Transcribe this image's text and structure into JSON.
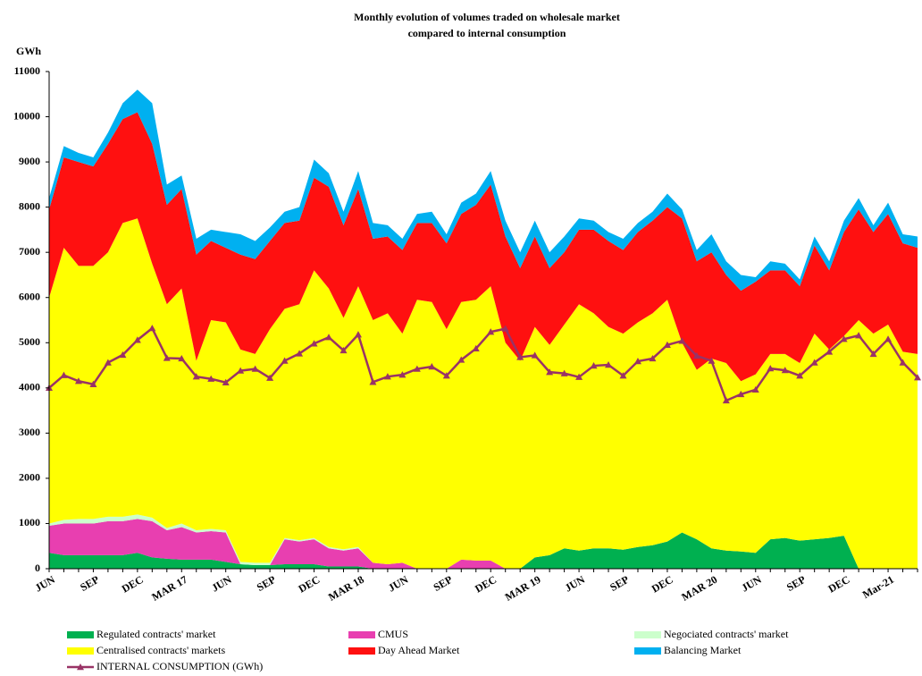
{
  "chart_data": {
    "type": "area",
    "stacked": true,
    "title": [
      "Monthly  evolution  of  volumes  traded  on  wholesale  market",
      "compared  to  internal  consumption"
    ],
    "y_label": "GWh",
    "categories": [
      "JUN",
      null,
      null,
      "SEP",
      null,
      null,
      "DEC",
      null,
      null,
      "MAR 17",
      null,
      null,
      "JUN",
      null,
      null,
      "SEP",
      null,
      null,
      "DEC",
      null,
      null,
      "MAR 18",
      null,
      null,
      "JUN",
      null,
      null,
      "SEP",
      null,
      null,
      "DEC",
      null,
      null,
      "MAR 19",
      null,
      null,
      "JUN",
      null,
      null,
      "SEP",
      null,
      null,
      "DEC",
      null,
      null,
      "MAR 20",
      null,
      null,
      "JUN",
      null,
      null,
      "SEP",
      null,
      null,
      "DEC",
      null,
      null,
      "Mar-21",
      null,
      null
    ],
    "ylim": [
      0,
      11000
    ],
    "yticks": [
      0,
      1000,
      2000,
      3000,
      4000,
      5000,
      6000,
      7000,
      8000,
      9000,
      10000,
      11000
    ],
    "series": [
      {
        "name": "Regulated contracts' market",
        "color": "#00b050",
        "values": [
          350,
          300,
          300,
          300,
          300,
          300,
          350,
          250,
          220,
          200,
          200,
          200,
          150,
          100,
          80,
          80,
          100,
          100,
          100,
          50,
          50,
          50,
          0,
          0,
          0,
          0,
          0,
          0,
          0,
          0,
          0,
          0,
          0,
          250,
          300,
          450,
          400,
          450,
          450,
          420,
          480,
          520,
          600,
          800,
          650,
          450,
          400,
          380,
          350,
          650,
          680,
          620,
          650,
          680,
          730,
          0,
          0,
          0,
          0,
          0
        ]
      },
      {
        "name": "CMUS",
        "color": "#e83fb0",
        "values": [
          600,
          700,
          700,
          700,
          750,
          750,
          750,
          800,
          630,
          720,
          600,
          630,
          650,
          0,
          0,
          0,
          550,
          500,
          550,
          400,
          350,
          400,
          130,
          100,
          130,
          0,
          0,
          0,
          200,
          180,
          180,
          0,
          0,
          0,
          0,
          0,
          0,
          0,
          0,
          0,
          0,
          0,
          0,
          0,
          0,
          0,
          0,
          0,
          0,
          0,
          0,
          0,
          0,
          0,
          0,
          0,
          0,
          0,
          0,
          0
        ]
      },
      {
        "name": "Negociated contracts' market",
        "color": "#ccffcc",
        "values": [
          50,
          80,
          100,
          100,
          100,
          100,
          100,
          80,
          50,
          80,
          50,
          50,
          50,
          50,
          50,
          50,
          30,
          30,
          30,
          30,
          30,
          30,
          0,
          0,
          0,
          0,
          0,
          0,
          0,
          0,
          0,
          0,
          0,
          0,
          0,
          0,
          0,
          0,
          0,
          0,
          0,
          0,
          0,
          0,
          0,
          0,
          0,
          0,
          0,
          0,
          0,
          0,
          0,
          0,
          0,
          0,
          0,
          0,
          0,
          0
        ]
      },
      {
        "name": "Centralised contracts' markets",
        "color": "#ffff00",
        "values": [
          5000,
          6020,
          5600,
          5600,
          5850,
          6500,
          6550,
          5620,
          4950,
          5200,
          3750,
          4620,
          4600,
          4700,
          4620,
          5170,
          5070,
          5220,
          5920,
          5720,
          5120,
          5770,
          5370,
          5550,
          5070,
          5950,
          5900,
          5300,
          5700,
          5770,
          6070,
          5000,
          4600,
          5100,
          4650,
          4950,
          5450,
          5200,
          4900,
          4780,
          4970,
          5130,
          5350,
          4200,
          3750,
          4200,
          4150,
          3770,
          3950,
          4100,
          4070,
          3930,
          4550,
          4170,
          4420,
          5500,
          5200,
          5400,
          4800,
          4750
        ]
      },
      {
        "name": "Day Ahead Market",
        "color": "#ff1010",
        "values": [
          1950,
          2000,
          2300,
          2200,
          2400,
          2300,
          2350,
          2650,
          2200,
          2200,
          2350,
          1750,
          1650,
          2100,
          2100,
          1950,
          1900,
          1850,
          2050,
          2250,
          2050,
          2150,
          1800,
          1700,
          1850,
          1700,
          1750,
          1900,
          1950,
          2100,
          2250,
          2350,
          2050,
          2000,
          1700,
          1600,
          1650,
          1850,
          1900,
          1850,
          2000,
          2050,
          2050,
          2750,
          2400,
          2350,
          1950,
          2000,
          2050,
          1850,
          1850,
          1700,
          1950,
          1750,
          2300,
          2450,
          2250,
          2450,
          2400,
          2350
        ]
      },
      {
        "name": "Balancing Market",
        "color": "#00b0f0",
        "values": [
          250,
          250,
          200,
          200,
          250,
          350,
          500,
          900,
          450,
          300,
          350,
          250,
          350,
          450,
          400,
          300,
          250,
          300,
          400,
          300,
          300,
          400,
          350,
          250,
          250,
          200,
          250,
          200,
          250,
          250,
          300,
          350,
          350,
          350,
          350,
          350,
          250,
          200,
          200,
          250,
          200,
          200,
          300,
          200,
          250,
          400,
          300,
          350,
          100,
          200,
          150,
          150,
          200,
          200,
          250,
          250,
          150,
          250,
          200,
          250
        ]
      },
      {
        "name": "INTERNAL CONSUMPTION (GWh)",
        "color": "#993366",
        "type": "line",
        "marker": "triangle",
        "values": [
          4000,
          4280,
          4150,
          4080,
          4560,
          4730,
          5060,
          5320,
          4660,
          4650,
          4250,
          4200,
          4120,
          4380,
          4420,
          4220,
          4600,
          4760,
          4980,
          5120,
          4830,
          5180,
          4130,
          4250,
          4290,
          4420,
          4470,
          4270,
          4620,
          4870,
          5240,
          5310,
          4680,
          4720,
          4350,
          4320,
          4240,
          4490,
          4510,
          4270,
          4590,
          4650,
          4950,
          5040,
          4710,
          4600,
          3720,
          3860,
          3960,
          4430,
          4390,
          4270,
          4560,
          4800,
          5080,
          5160,
          4750,
          5080,
          4560,
          4230
        ]
      }
    ]
  }
}
